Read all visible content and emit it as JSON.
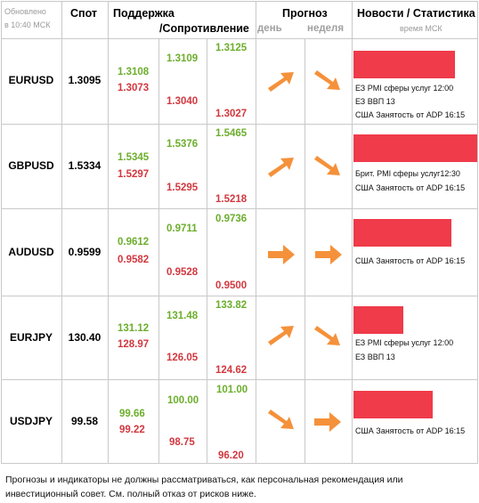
{
  "header": {
    "updated_line1": "Обновлено",
    "updated_line2": "в 10:40 МСК",
    "spot": "Спот",
    "support": "Поддержка",
    "resistance": "/Сопротивление",
    "forecast": "Прогноз",
    "day": "день",
    "week": "неделя",
    "news": "Новости / Статистика",
    "news_time": "время МСК"
  },
  "rows": [
    {
      "pair": "EURUSD",
      "spot": "1.3095",
      "s1": "1.3108",
      "r1": "1.3073",
      "s2": "1.3109",
      "r2": "1.3040",
      "s3": "1.3125",
      "r3": "1.3027",
      "day": "up",
      "week": "down",
      "news_bar_fraction": 0.8,
      "news": [
        "ЕЗ PMI сферы услуг 12:00",
        "ЕЗ ВВП 13",
        "США Занятость от ADP 16:15"
      ]
    },
    {
      "pair": "GBPUSD",
      "spot": "1.5334",
      "s1": "1.5345",
      "r1": "1.5297",
      "s2": "1.5376",
      "r2": "1.5295",
      "s3": "1.5465",
      "r3": "1.5218",
      "day": "up",
      "week": "down",
      "news_bar_fraction": 1.0,
      "news": [
        "Брит.  PMI сферы услуг12:30",
        "США Занятость от ADP 16:15"
      ]
    },
    {
      "pair": "AUDUSD",
      "spot": "0.9599",
      "s1": "0.9612",
      "r1": "0.9582",
      "s2": "0.9711",
      "r2": "0.9528",
      "s3": "0.9736",
      "r3": "0.9500",
      "day": "right",
      "week": "right",
      "news_bar_fraction": 0.78,
      "news": [
        "США Занятость от ADP 16:15"
      ]
    },
    {
      "pair": "EURJPY",
      "spot": "130.40",
      "s1": "131.12",
      "r1": "128.97",
      "s2": "131.48",
      "r2": "126.05",
      "s3": "133.82",
      "r3": "124.62",
      "day": "up",
      "week": "down",
      "news_bar_fraction": 0.4,
      "news": [
        "ЕЗ PMI сферы услуг 12:00",
        "ЕЗ ВВП 13"
      ]
    },
    {
      "pair": "USDJPY",
      "spot": "99.58",
      "s1": "99.66",
      "r1": "99.22",
      "s2": "100.00",
      "r2": "98.75",
      "s3": "101.00",
      "r3": "96.20",
      "day": "down",
      "week": "right",
      "news_bar_fraction": 0.65,
      "news": [
        "США Занятость от ADP 16:15"
      ]
    }
  ],
  "colors": {
    "support": "#6cae2c",
    "resistance": "#d2383f",
    "arrow": "#f5913a",
    "news_bar": "#ef3b4a",
    "grid": "#c9c9c9"
  },
  "footer": {
    "line1": "Прогнозы и индикаторы не должны рассматриваться, как персональная рекомендация или",
    "line2": "инвестиционный совет. См. полный отказ от рисков ниже."
  }
}
